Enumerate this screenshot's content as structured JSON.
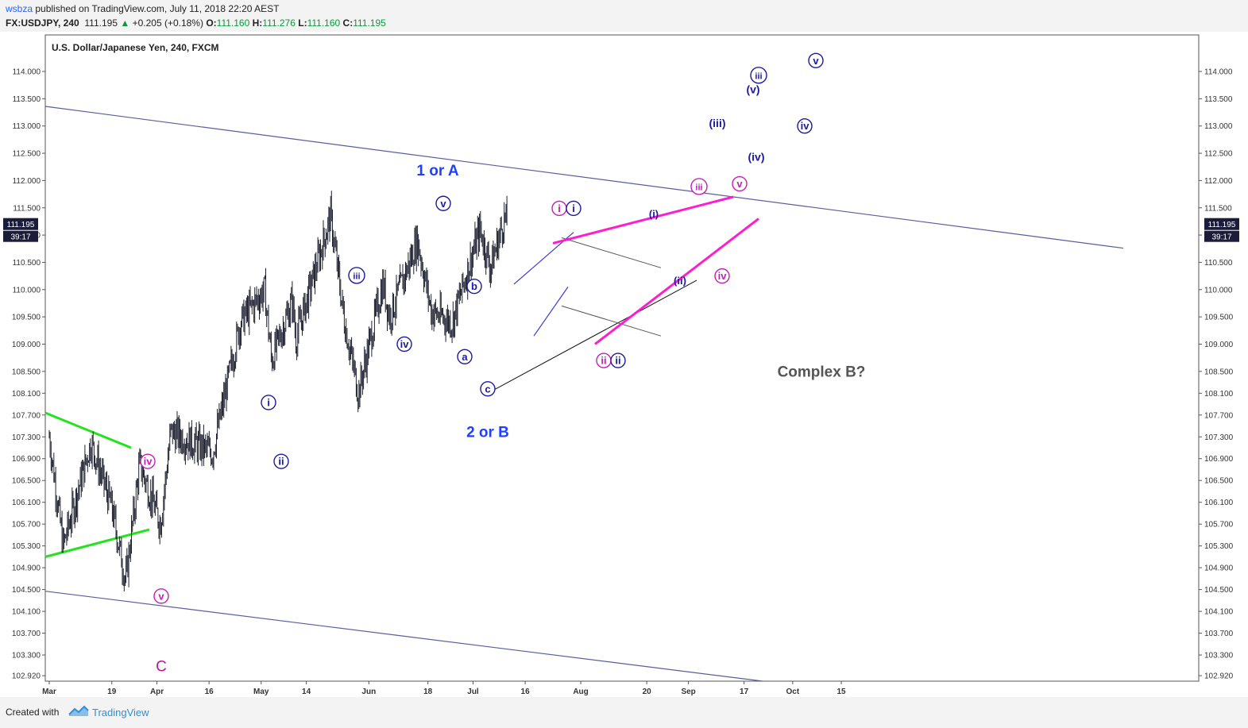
{
  "header": {
    "user": "wsbza",
    "published_text": " published on TradingView.com, July 11, 2018 22:20 AEST",
    "symbol": "FX:USDJPY, 240",
    "last": "111.195",
    "change_arrow": "▲",
    "change": "+0.205 (+0.18%)",
    "open_label": "O:",
    "open": "111.160",
    "high_label": "H:",
    "high": "111.276",
    "low_label": "L:",
    "low": "111.160",
    "close_label": "C:",
    "close": "111.195"
  },
  "footer": {
    "created_with": "Created with",
    "brand": "TradingView"
  },
  "chart_data": {
    "type": "candlestick",
    "title": "U.S. Dollar/Japanese Yen, 240, FXCM",
    "ylim": [
      102.82,
      114.67
    ],
    "y_ticks": [
      "114.000",
      "113.500",
      "113.000",
      "112.500",
      "112.000",
      "111.500",
      "111.000",
      "110.500",
      "110.000",
      "109.500",
      "109.000",
      "108.500",
      "108.100",
      "107.700",
      "107.300",
      "106.900",
      "106.500",
      "106.100",
      "105.700",
      "105.300",
      "104.900",
      "104.500",
      "104.100",
      "103.700",
      "103.300",
      "102.920"
    ],
    "x_ticks": [
      "Mar",
      "19",
      "Apr",
      "16",
      "May",
      "14",
      "Jun",
      "18",
      "Jul",
      "16",
      "Aug",
      "20",
      "Sep",
      "17",
      "Oct",
      "15"
    ],
    "last_price_label": "111.195",
    "countdown_label": "39:17",
    "price_path_approx": [
      {
        "date": "2018-03-01",
        "close": 107.3
      },
      {
        "date": "2018-03-05",
        "close": 105.3
      },
      {
        "date": "2018-03-13",
        "close": 107.2
      },
      {
        "date": "2018-03-19",
        "close": 106.0
      },
      {
        "date": "2018-03-23",
        "close": 104.65
      },
      {
        "date": "2018-03-27",
        "close": 106.8
      },
      {
        "date": "2018-04-02",
        "close": 105.7
      },
      {
        "date": "2018-04-05",
        "close": 107.4
      },
      {
        "date": "2018-04-17",
        "close": 107.0
      },
      {
        "date": "2018-04-25",
        "close": 109.4
      },
      {
        "date": "2018-05-02",
        "close": 110.0
      },
      {
        "date": "2018-05-04",
        "close": 108.7
      },
      {
        "date": "2018-05-10",
        "close": 109.8
      },
      {
        "date": "2018-05-11",
        "close": 109.1
      },
      {
        "date": "2018-05-21",
        "close": 111.35
      },
      {
        "date": "2018-05-25",
        "close": 109.4
      },
      {
        "date": "2018-05-29",
        "close": 108.1
      },
      {
        "date": "2018-06-05",
        "close": 110.1
      },
      {
        "date": "2018-06-07",
        "close": 109.5
      },
      {
        "date": "2018-06-15",
        "close": 110.9
      },
      {
        "date": "2018-06-19",
        "close": 109.6
      },
      {
        "date": "2018-06-25",
        "close": 109.4
      },
      {
        "date": "2018-07-03",
        "close": 111.1
      },
      {
        "date": "2018-07-06",
        "close": 110.4
      },
      {
        "date": "2018-07-10",
        "close": 111.3
      },
      {
        "date": "2018-07-11",
        "close": 111.195
      }
    ],
    "annotations": [
      {
        "text": "1 or A",
        "color": "#1e40ff"
      },
      {
        "text": "2 or B",
        "color": "#1e40ff"
      },
      {
        "text": "C",
        "color": "#b5179e"
      },
      {
        "text": "Complex B?",
        "color": "#555555"
      },
      {
        "text": "(i)",
        "color": "#1a1aa0"
      },
      {
        "text": "(ii)",
        "color": "#1a1aa0"
      },
      {
        "text": "(iii)",
        "color": "#1a1aa0"
      },
      {
        "text": "(iv)",
        "color": "#1a1aa0"
      },
      {
        "text": "(v)",
        "color": "#1a1aa0"
      }
    ],
    "wave_labels": [
      "i",
      "ii",
      "iii",
      "iv",
      "v",
      "a",
      "b",
      "c"
    ],
    "colors": {
      "candles": "#1e2030",
      "channel": "#5b5c9c",
      "magenta": "#ff1ecf",
      "green": "#24e21b",
      "navy": "#1a1aa0"
    }
  }
}
